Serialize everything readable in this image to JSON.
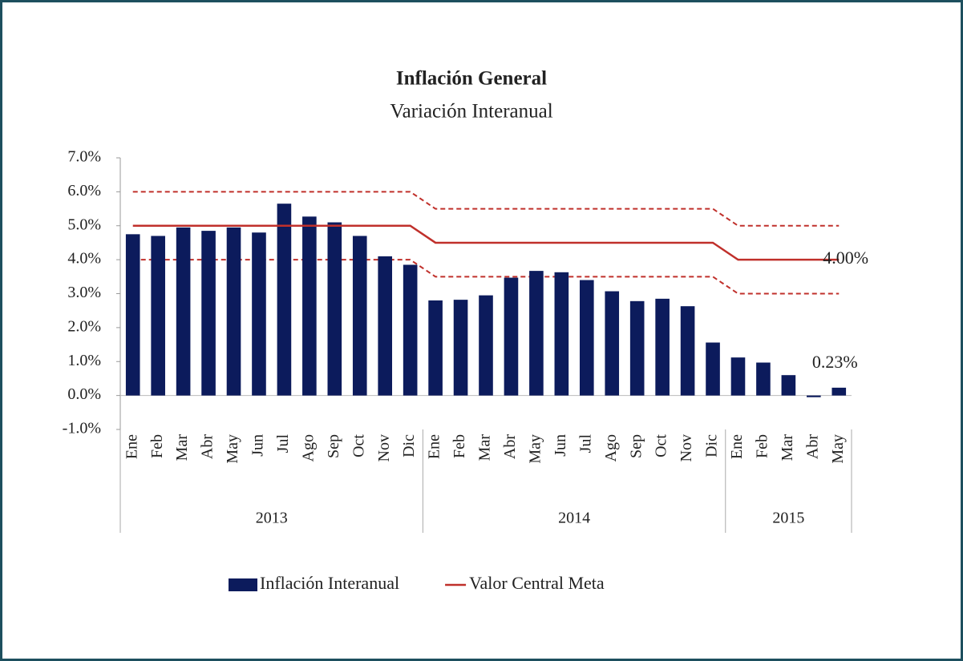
{
  "chart_data": {
    "type": "bar",
    "title": "Inflación General",
    "subtitle": "Variación Interanual",
    "categories": [
      "Ene",
      "Feb",
      "Mar",
      "Abr",
      "May",
      "Jun",
      "Jul",
      "Ago",
      "Sep",
      "Oct",
      "Nov",
      "Dic",
      "Ene",
      "Feb",
      "Mar",
      "Abr",
      "May",
      "Jun",
      "Jul",
      "Ago",
      "Sep",
      "Oct",
      "Nov",
      "Dic",
      "Ene",
      "Feb",
      "Mar",
      "Abr",
      "May"
    ],
    "x_groups": [
      {
        "label": "2013",
        "span": 12
      },
      {
        "label": "2014",
        "span": 12
      },
      {
        "label": "2015",
        "span": 5
      }
    ],
    "series": [
      {
        "name": "Inflación Interanual",
        "type": "bar",
        "color": "#0c1b5c",
        "values": [
          4.75,
          4.7,
          4.95,
          4.85,
          4.95,
          4.8,
          5.65,
          5.27,
          5.1,
          4.7,
          4.1,
          3.85,
          2.8,
          2.82,
          2.95,
          3.47,
          3.67,
          3.63,
          3.4,
          3.07,
          2.78,
          2.85,
          2.63,
          1.56,
          1.12,
          0.97,
          0.6,
          -0.05,
          0.23
        ],
        "value_labels": [
          null,
          null,
          null,
          null,
          null,
          null,
          null,
          null,
          null,
          null,
          null,
          null,
          null,
          null,
          null,
          null,
          null,
          null,
          null,
          null,
          null,
          null,
          null,
          null,
          null,
          null,
          null,
          null,
          "0.23%"
        ]
      },
      {
        "name": "Valor Central Meta",
        "type": "line",
        "color": "#c0302b",
        "values": [
          5,
          5,
          5,
          5,
          5,
          5,
          5,
          5,
          5,
          5,
          5,
          5,
          4.5,
          4.5,
          4.5,
          4.5,
          4.5,
          4.5,
          4.5,
          4.5,
          4.5,
          4.5,
          4.5,
          4.5,
          4,
          4,
          4,
          4,
          4
        ],
        "value_labels": [
          null,
          null,
          null,
          null,
          null,
          null,
          null,
          null,
          null,
          null,
          null,
          null,
          null,
          null,
          null,
          null,
          null,
          null,
          null,
          null,
          null,
          null,
          null,
          null,
          null,
          null,
          null,
          null,
          "4.00%"
        ]
      }
    ],
    "target_range": {
      "color": "#c0302b",
      "dashed": true,
      "upper": [
        6,
        6,
        6,
        6,
        6,
        6,
        6,
        6,
        6,
        6,
        6,
        6,
        5.5,
        5.5,
        5.5,
        5.5,
        5.5,
        5.5,
        5.5,
        5.5,
        5.5,
        5.5,
        5.5,
        5.5,
        5,
        5,
        5,
        5,
        5
      ],
      "lower": [
        4,
        4,
        4,
        4,
        4,
        4,
        4,
        4,
        4,
        4,
        4,
        4,
        3.5,
        3.5,
        3.5,
        3.5,
        3.5,
        3.5,
        3.5,
        3.5,
        3.5,
        3.5,
        3.5,
        3.5,
        3,
        3,
        3,
        3,
        3
      ]
    },
    "ylim": [
      -1,
      7
    ],
    "yticks": [
      {
        "value": -1,
        "label": "-1.0%"
      },
      {
        "value": 0,
        "label": "0.0%"
      },
      {
        "value": 1,
        "label": "1.0%"
      },
      {
        "value": 2,
        "label": "2.0%"
      },
      {
        "value": 3,
        "label": "3.0%"
      },
      {
        "value": 4,
        "label": "4.0%"
      },
      {
        "value": 5,
        "label": "5.0%"
      },
      {
        "value": 6,
        "label": "6.0%"
      },
      {
        "value": 7,
        "label": "7.0%"
      }
    ],
    "grid": false,
    "legend": "bottom"
  }
}
